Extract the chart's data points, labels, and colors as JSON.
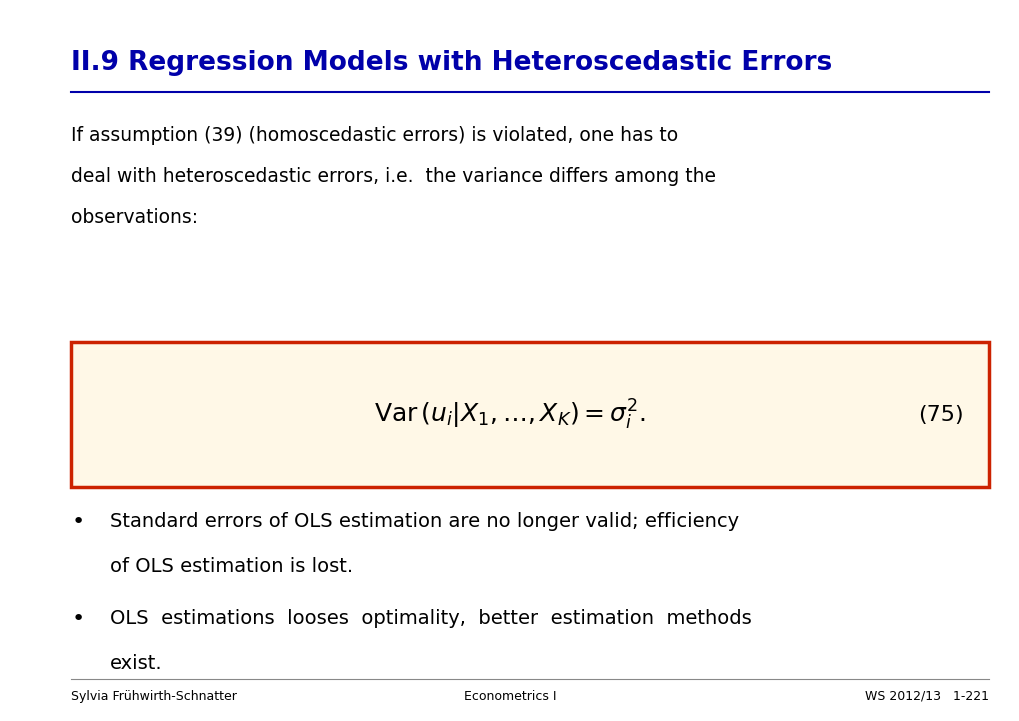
{
  "title": "II.9 Regression Models with Heteroscedastic Errors",
  "title_color": "#0000AA",
  "body_line1": "If assumption (39) (homoscedastic errors) is violated, one has to",
  "body_line2": "deal with heteroscedastic errors, i.e.  the variance differs among the",
  "body_line3": "observations:",
  "formula_label": "$\\mathrm{Var}\\,(u_i|X_1,\\ldots,X_K) = \\sigma_i^2.$",
  "equation_number": "(75)",
  "box_bg_color": "#FFF8E7",
  "box_border_color": "#CC2200",
  "bullet1_line1": "Standard errors of OLS estimation are no longer valid; efficiency",
  "bullet1_line2": "of OLS estimation is lost.",
  "bullet2_line1": "OLS  estimations  looses  optimality,  better  estimation  methods",
  "bullet2_line2": "exist.",
  "footer_left": "Sylvia Frühwirth-Schnatter",
  "footer_center": "Econometrics I",
  "footer_right": "WS 2012/13   1-221",
  "bg_color": "#FFFFFF",
  "text_color": "#000000",
  "footer_color": "#000000"
}
